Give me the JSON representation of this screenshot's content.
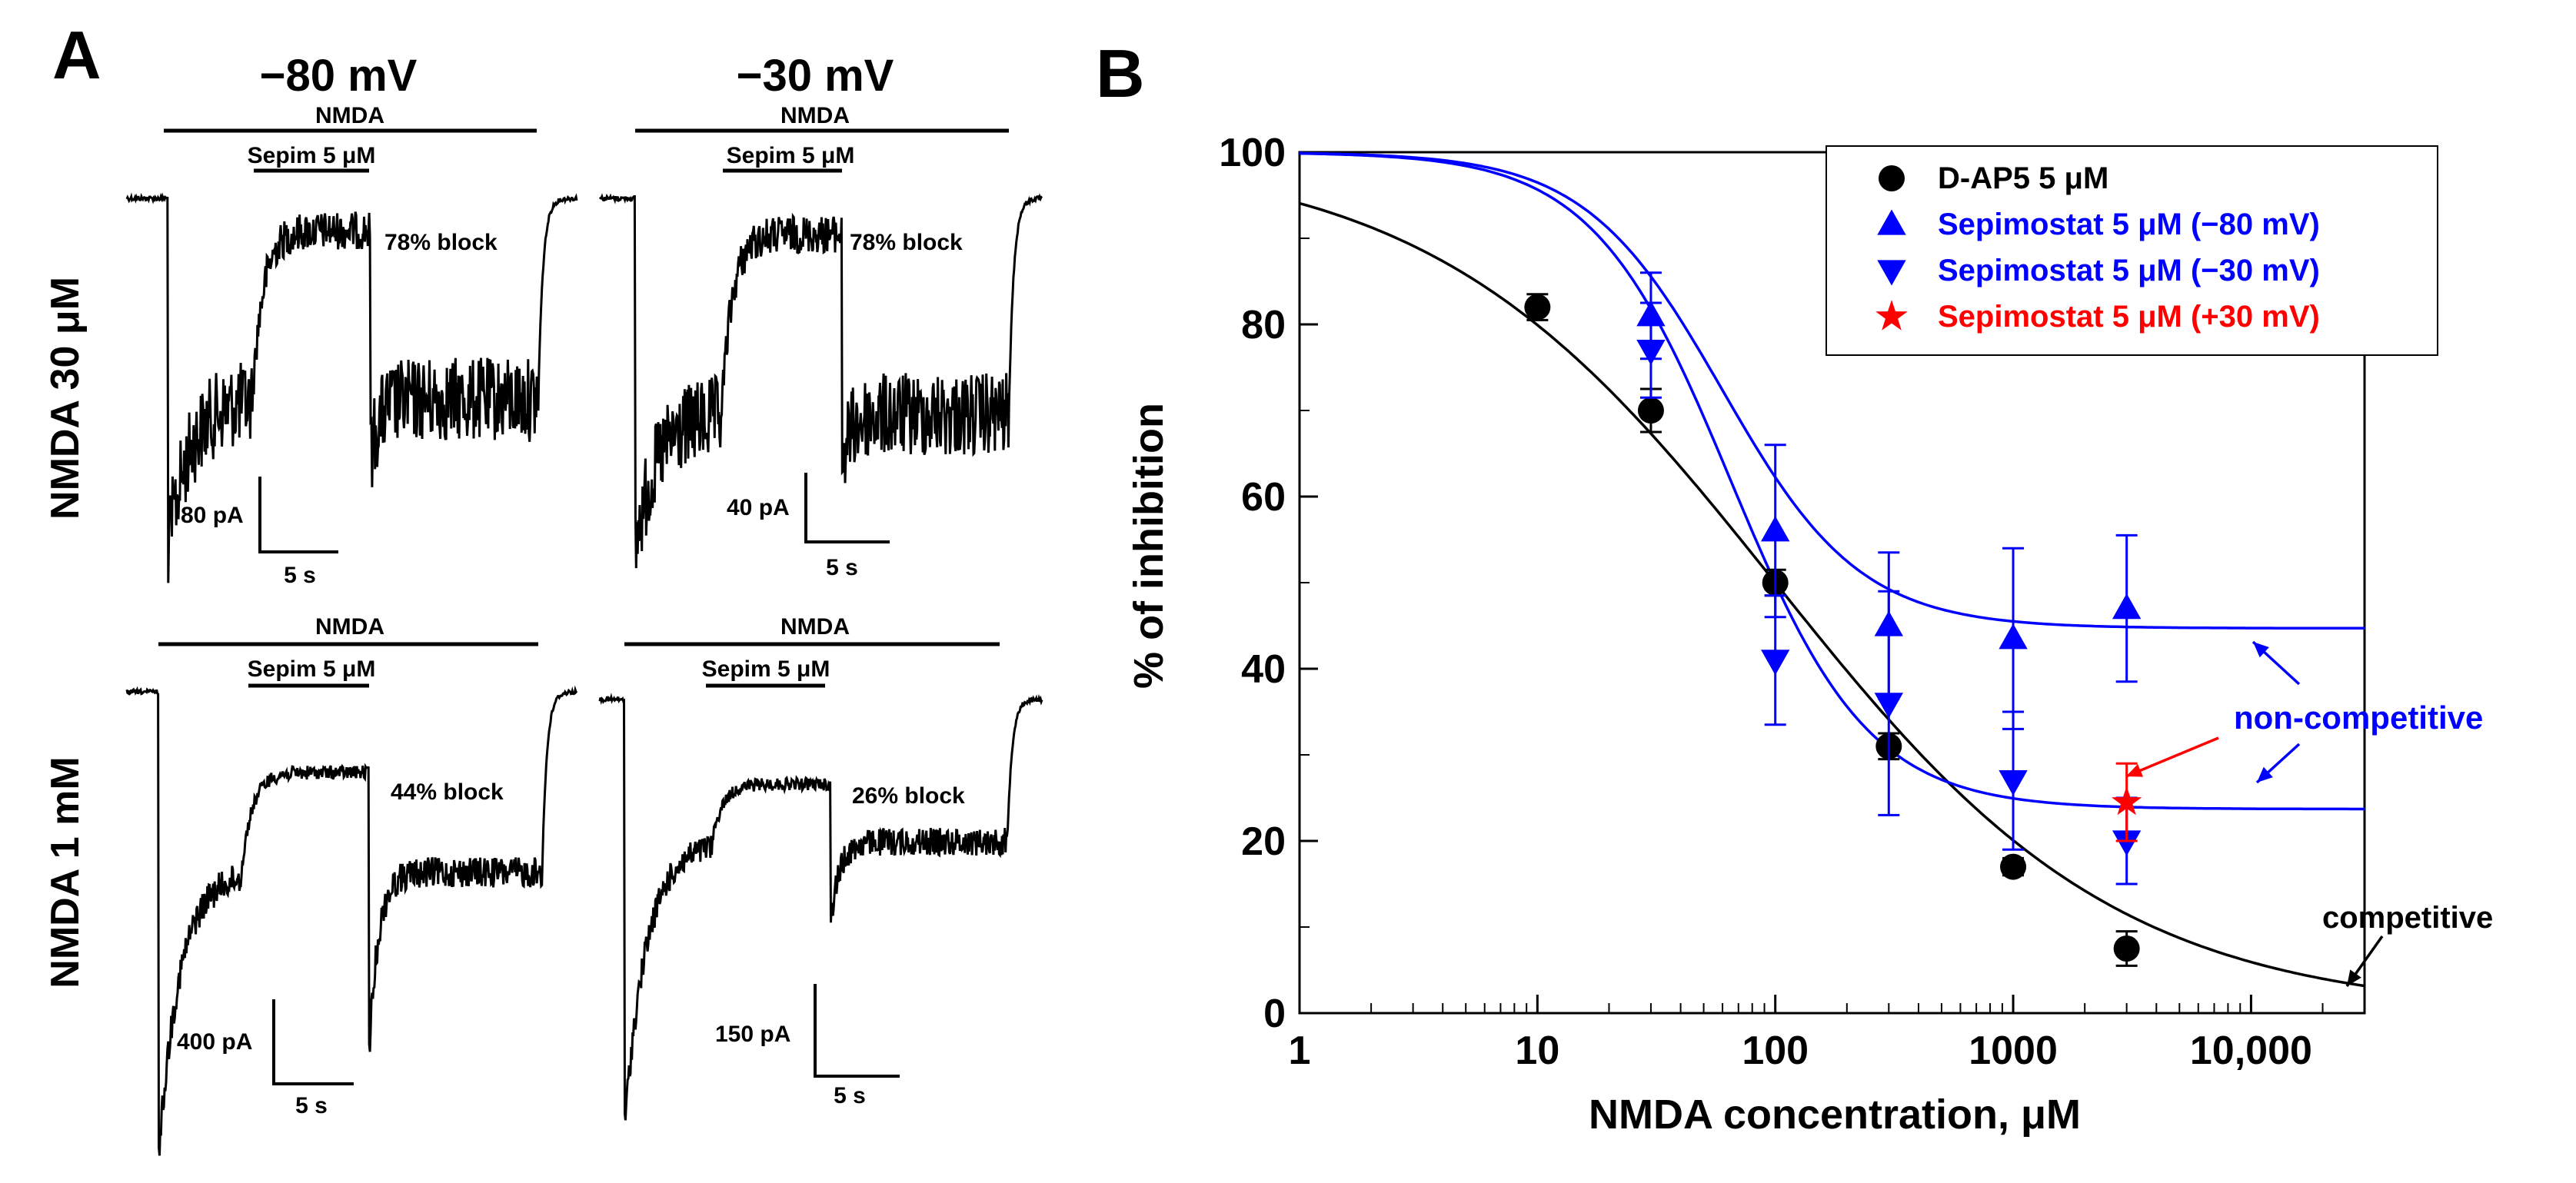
{
  "panel_a": {
    "label": "A",
    "col_titles": [
      "−80 mV",
      "−30 mV"
    ],
    "row_labels": [
      "NMDA 30 μM",
      "NMDA 1 mM"
    ],
    "nmda_bar_label": "NMDA",
    "drug_bar_label": "Sepim 5 μM",
    "traces": [
      {
        "row": 0,
        "col": 0,
        "block_label": "78% block",
        "scale_current": "80 pA",
        "scale_time": "5 s"
      },
      {
        "row": 0,
        "col": 1,
        "block_label": "78% block",
        "scale_current": "40 pA",
        "scale_time": "5 s"
      },
      {
        "row": 1,
        "col": 0,
        "block_label": "44% block",
        "scale_current": "400 pA",
        "scale_time": "5 s"
      },
      {
        "row": 1,
        "col": 1,
        "block_label": "26% block",
        "scale_current": "150 pA",
        "scale_time": "5 s"
      }
    ]
  },
  "chart_data": {
    "panel_label": "B",
    "type": "scatter",
    "title": "",
    "xlabel": "NMDA concentration, μM",
    "ylabel": "% of inhibition",
    "xscale": "log",
    "xlim": [
      1,
      30000
    ],
    "ylim": [
      0,
      100
    ],
    "xticks": [
      1,
      10,
      100,
      1000,
      10000
    ],
    "xticklabels": [
      "1",
      "10",
      "100",
      "1000",
      "10,000"
    ],
    "yticks": [
      0,
      20,
      40,
      60,
      80,
      100
    ],
    "yticklabels": [
      "0",
      "20",
      "40",
      "60",
      "80",
      "100"
    ],
    "legend_position": "top-right",
    "series": [
      {
        "name": "D-AP5 5 μM",
        "color": "#000000",
        "marker": "circle",
        "x": [
          10,
          30,
          100,
          300,
          1000,
          3000
        ],
        "y": [
          82,
          70,
          50,
          31,
          17,
          7.5
        ],
        "err": [
          1.5,
          2.5,
          1.5,
          1.5,
          1.0,
          2.0
        ]
      },
      {
        "name": "Sepimostat 5 μM (−80 mV)",
        "color": "#0000ff",
        "marker": "triangle-up",
        "x": [
          30,
          100,
          300,
          1000,
          3000
        ],
        "y": [
          81,
          56,
          45,
          43.5,
          47
        ],
        "err": [
          5,
          10,
          8.5,
          10.5,
          8.5
        ]
      },
      {
        "name": "Sepimostat 5 μM (−30 mV)",
        "color": "#0000ff",
        "marker": "triangle-down",
        "x": [
          30,
          100,
          300,
          1000,
          3000
        ],
        "y": [
          77,
          41,
          36,
          27,
          20
        ],
        "err": [
          5.5,
          7.5,
          13,
          8,
          5
        ]
      },
      {
        "name": "Sepimostat 5 μM (+30 mV)",
        "color": "#ff0000",
        "marker": "star",
        "x": [
          3000
        ],
        "y": [
          24.5
        ],
        "err": [
          4.5
        ]
      }
    ],
    "fits": [
      {
        "name": "D-AP5 fit",
        "color": "#000000",
        "bottom": 0,
        "top": 100,
        "ic50": 100,
        "hill": 0.6
      },
      {
        "name": "Sepimostat −80 mV fit",
        "color": "#0000ff",
        "bottom": 44.7,
        "top": 100,
        "ic50": 60,
        "hill": 1.5
      },
      {
        "name": "Sepimostat −30 mV fit",
        "color": "#0000ff",
        "bottom": 23.7,
        "top": 100,
        "ic50": 65,
        "hill": 1.5
      }
    ],
    "annotations": [
      {
        "text": "non-competitive",
        "color": "#0000ff"
      },
      {
        "text": "competitive",
        "color": "#000000"
      }
    ]
  }
}
